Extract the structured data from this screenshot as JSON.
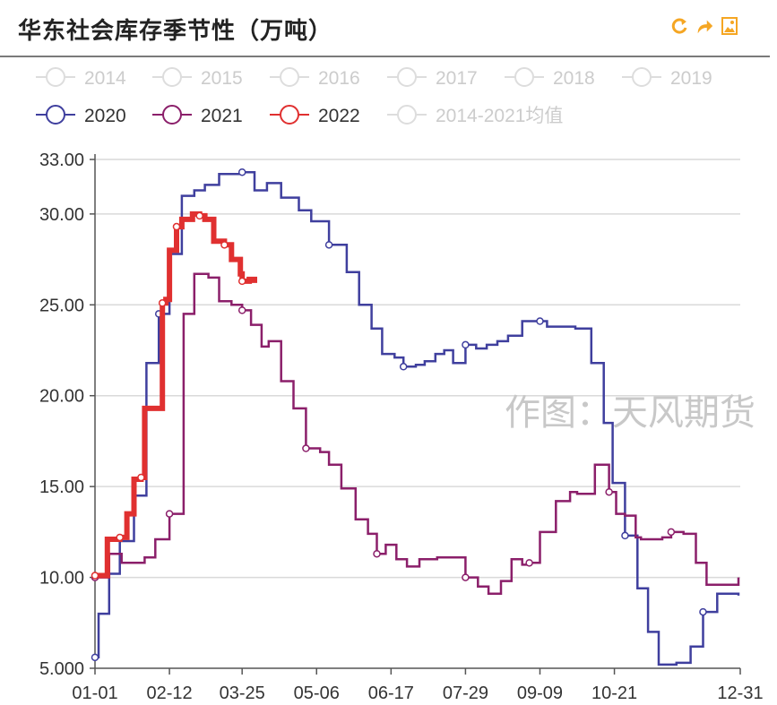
{
  "header": {
    "title": "华东社会库存季节性（万吨）",
    "tools": [
      {
        "name": "refresh-icon",
        "color": "#f5a623"
      },
      {
        "name": "share-icon",
        "color": "#f5a623"
      },
      {
        "name": "save-image-icon",
        "color": "#f5a623"
      }
    ]
  },
  "watermark": "作图：天风期货",
  "chart_data": {
    "type": "line",
    "title": "华东社会库存季节性（万吨）",
    "xlabel": "",
    "ylabel": "",
    "x_ticks": [
      "01-01",
      "02-12",
      "03-25",
      "05-06",
      "06-17",
      "07-29",
      "09-09",
      "10-21",
      "12-31"
    ],
    "x_tick_days": [
      1,
      43,
      84,
      126,
      168,
      210,
      252,
      294,
      365
    ],
    "y_ticks": [
      "5.000",
      "10.00",
      "15.00",
      "20.00",
      "25.00",
      "30.00",
      "33.00"
    ],
    "y_tick_values": [
      5,
      10,
      15,
      20,
      25,
      30,
      33
    ],
    "xlim": [
      1,
      365
    ],
    "ylim": [
      5,
      33
    ],
    "grid": "horizontal",
    "step": true,
    "legend_position": "top",
    "legend": [
      {
        "name": "2014",
        "color": "#dddddd",
        "active": false
      },
      {
        "name": "2015",
        "color": "#dddddd",
        "active": false
      },
      {
        "name": "2016",
        "color": "#dddddd",
        "active": false
      },
      {
        "name": "2017",
        "color": "#dddddd",
        "active": false
      },
      {
        "name": "2018",
        "color": "#dddddd",
        "active": false
      },
      {
        "name": "2019",
        "color": "#dddddd",
        "active": false
      },
      {
        "name": "2020",
        "color": "#3f3f9e",
        "active": true
      },
      {
        "name": "2021",
        "color": "#8b1f6a",
        "active": true
      },
      {
        "name": "2022",
        "color": "#e03030",
        "active": true
      },
      {
        "name": "2014-2021均值",
        "color": "#dddddd",
        "active": false
      }
    ],
    "series": [
      {
        "name": "2020",
        "color": "#3f3f9e",
        "width": 2.5,
        "points": [
          [
            1,
            5.6
          ],
          [
            3,
            8
          ],
          [
            9,
            10.2
          ],
          [
            15,
            12
          ],
          [
            23,
            14.5
          ],
          [
            30,
            21.8
          ],
          [
            37,
            24.5
          ],
          [
            43,
            27.8
          ],
          [
            50,
            31
          ],
          [
            57,
            31.3
          ],
          [
            63,
            31.6
          ],
          [
            71,
            32.2
          ],
          [
            84,
            32.3
          ],
          [
            91,
            31.3
          ],
          [
            98,
            31.7
          ],
          [
            106,
            30.9
          ],
          [
            116,
            30.2
          ],
          [
            123,
            29.6
          ],
          [
            133,
            28.3
          ],
          [
            143,
            26.8
          ],
          [
            150,
            25
          ],
          [
            157,
            23.7
          ],
          [
            163,
            22.3
          ],
          [
            170,
            22.1
          ],
          [
            175,
            21.6
          ],
          [
            182,
            21.7
          ],
          [
            187,
            21.9
          ],
          [
            193,
            22.3
          ],
          [
            198,
            22.5
          ],
          [
            203,
            21.8
          ],
          [
            210,
            22.8
          ],
          [
            216,
            22.6
          ],
          [
            222,
            22.8
          ],
          [
            228,
            23
          ],
          [
            234,
            23.3
          ],
          [
            242,
            24.1
          ],
          [
            252,
            24.1
          ],
          [
            256,
            23.8
          ],
          [
            272,
            23.7
          ],
          [
            281,
            21.8
          ],
          [
            288,
            18.5
          ],
          [
            293,
            15.2
          ],
          [
            300,
            12.3
          ],
          [
            307,
            9.4
          ],
          [
            313,
            7
          ],
          [
            319,
            5.2
          ],
          [
            329,
            5.3
          ],
          [
            337,
            6.2
          ],
          [
            344,
            8.1
          ],
          [
            352,
            9.1
          ],
          [
            360,
            9.1
          ],
          [
            364,
            9
          ]
        ]
      },
      {
        "name": "2021",
        "color": "#8b1f6a",
        "width": 2.5,
        "points": [
          [
            1,
            10
          ],
          [
            3,
            10
          ],
          [
            9,
            11.3
          ],
          [
            16,
            10.8
          ],
          [
            29,
            11.1
          ],
          [
            35,
            12.1
          ],
          [
            43,
            13.5
          ],
          [
            51,
            24.5
          ],
          [
            57,
            26.7
          ],
          [
            65,
            26.5
          ],
          [
            71,
            25.2
          ],
          [
            78,
            25
          ],
          [
            84,
            24.7
          ],
          [
            89,
            23.9
          ],
          [
            95,
            22.7
          ],
          [
            99,
            23
          ],
          [
            106,
            20.8
          ],
          [
            113,
            19.3
          ],
          [
            120,
            17.1
          ],
          [
            128,
            16.9
          ],
          [
            133,
            16.2
          ],
          [
            140,
            14.9
          ],
          [
            148,
            13.2
          ],
          [
            155,
            12.4
          ],
          [
            160,
            11.3
          ],
          [
            165,
            11.8
          ],
          [
            171,
            11
          ],
          [
            177,
            10.6
          ],
          [
            184,
            11
          ],
          [
            194,
            11.1
          ],
          [
            210,
            10
          ],
          [
            217,
            9.5
          ],
          [
            223,
            9.1
          ],
          [
            230,
            9.8
          ],
          [
            236,
            11
          ],
          [
            242,
            10.7
          ],
          [
            246,
            10.8
          ],
          [
            252,
            12.5
          ],
          [
            261,
            14.2
          ],
          [
            269,
            14.7
          ],
          [
            273,
            14.6
          ],
          [
            283,
            16.2
          ],
          [
            291,
            14.7
          ],
          [
            295,
            13.5
          ],
          [
            300,
            13.4
          ],
          [
            306,
            12.2
          ],
          [
            309,
            12.1
          ],
          [
            321,
            12.2
          ],
          [
            326,
            12.5
          ],
          [
            333,
            12.4
          ],
          [
            340,
            10.8
          ],
          [
            346,
            9.6
          ],
          [
            354,
            9.6
          ],
          [
            364,
            10
          ]
        ]
      },
      {
        "name": "2022",
        "color": "#e03030",
        "width": 6,
        "points": [
          [
            1,
            10.1
          ],
          [
            6,
            10.1
          ],
          [
            8,
            12.1
          ],
          [
            15,
            12.2
          ],
          [
            19,
            13.5
          ],
          [
            23,
            15.4
          ],
          [
            27,
            15.5
          ],
          [
            29,
            19.3
          ],
          [
            37,
            19.3
          ],
          [
            39,
            25.1
          ],
          [
            41,
            25.3
          ],
          [
            43,
            28
          ],
          [
            47,
            29.3
          ],
          [
            50,
            29.7
          ],
          [
            56,
            30
          ],
          [
            60,
            29.9
          ],
          [
            63,
            29.7
          ],
          [
            68,
            28.5
          ],
          [
            74,
            28.3
          ],
          [
            78,
            27.5
          ],
          [
            83,
            26.7
          ],
          [
            84,
            26.3
          ],
          [
            88,
            26.4
          ],
          [
            91,
            26.2
          ]
        ]
      }
    ]
  }
}
